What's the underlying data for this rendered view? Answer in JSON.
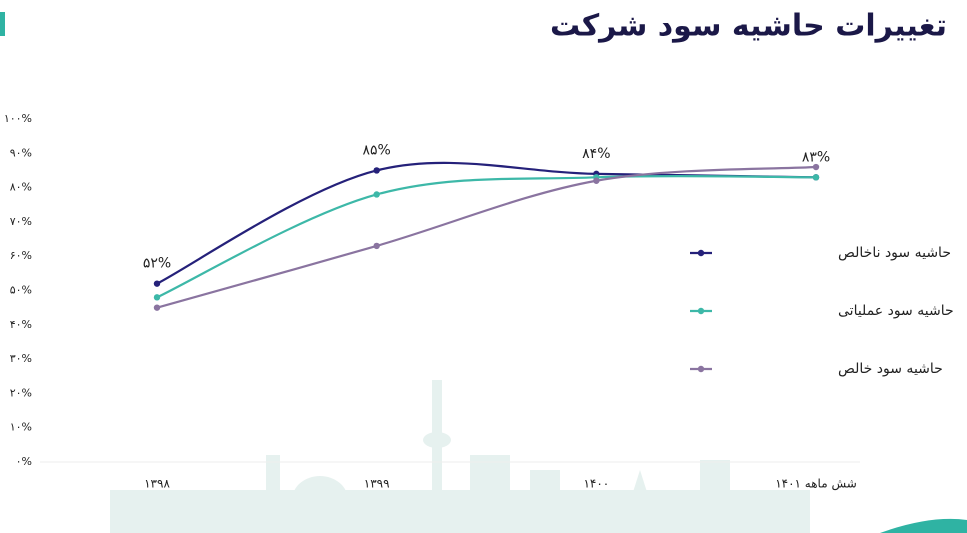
{
  "chart_data": {
    "type": "line",
    "title": "تغییرات حاشیه سود شرکت",
    "categories": [
      "۱۳۹۸",
      "۱۳۹۹",
      "۱۴۰۰",
      "شش ماهه ۱۴۰۱"
    ],
    "series": [
      {
        "name": "حاشیه سود ناخالص",
        "color": "#25217a",
        "values": [
          52,
          85,
          84,
          83
        ],
        "value_labels": [
          "۵۲%",
          "۸۵%",
          "۸۴%",
          "۸۳%"
        ]
      },
      {
        "name": "حاشیه سود عملیاتی",
        "color": "#3db8a8",
        "values": [
          48,
          78,
          83,
          83
        ]
      },
      {
        "name": "حاشیه سود خالص",
        "color": "#8a74a0",
        "values": [
          45,
          63,
          82,
          86
        ]
      }
    ],
    "ylim": [
      0,
      100
    ],
    "yticks": [
      {
        "value": 0,
        "label": "۰%"
      },
      {
        "value": 10,
        "label": "۱۰%"
      },
      {
        "value": 20,
        "label": "۲۰%"
      },
      {
        "value": 30,
        "label": "۳۰%"
      },
      {
        "value": 40,
        "label": "۴۰%"
      },
      {
        "value": 50,
        "label": "۵۰%"
      },
      {
        "value": 60,
        "label": "۶۰%"
      },
      {
        "value": 70,
        "label": "۷۰%"
      },
      {
        "value": 80,
        "label": "۸۰%"
      },
      {
        "value": 90,
        "label": "۹۰%"
      },
      {
        "value": 100,
        "label": "۱۰۰%"
      }
    ]
  }
}
